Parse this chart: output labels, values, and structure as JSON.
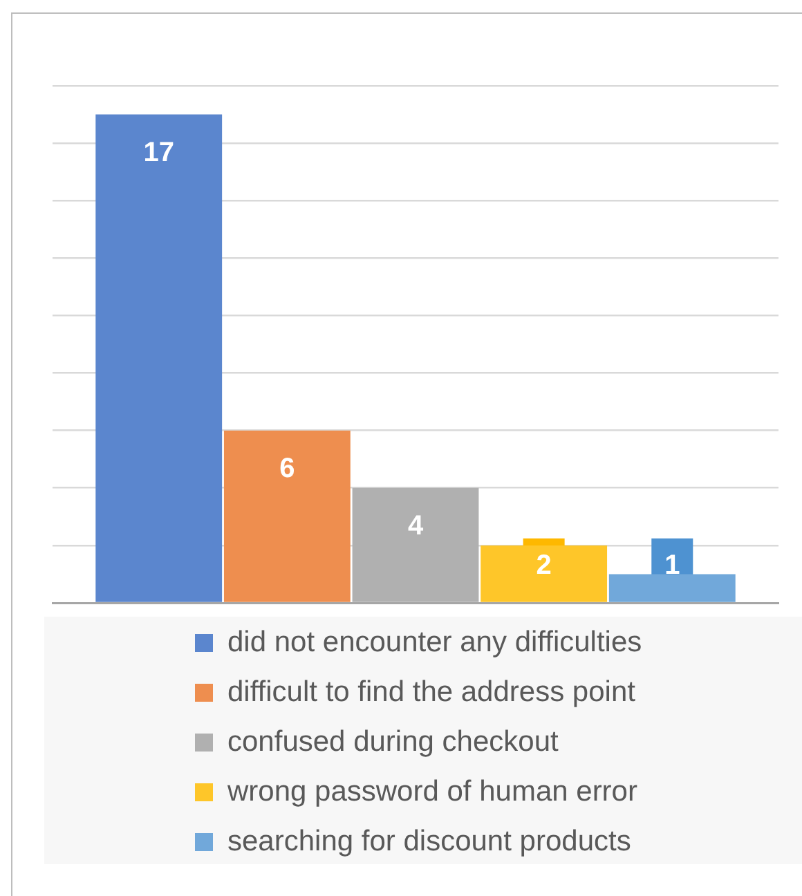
{
  "chart_data": {
    "type": "bar",
    "categories": [
      null
    ],
    "series": [
      {
        "name": "did not encounter any difficulties",
        "color": "#5b86ce",
        "values": [
          17
        ]
      },
      {
        "name": "difficult to find the address point",
        "color": "#ee8e4f",
        "values": [
          6
        ]
      },
      {
        "name": "confused during checkout",
        "color": "#b0b0b0",
        "values": [
          4
        ]
      },
      {
        "name": "wrong password of human error",
        "color": "#fec629",
        "values": [
          2
        ]
      },
      {
        "name": "searching for discount products",
        "color": "#71a8da",
        "values": [
          1
        ]
      }
    ],
    "ylim": [
      0,
      18
    ],
    "yticks": [
      0,
      2,
      4,
      6,
      8,
      10,
      12,
      14,
      16,
      18
    ],
    "grid": "y",
    "legend": "bottom",
    "tick_labels": false,
    "data_labels": true
  }
}
